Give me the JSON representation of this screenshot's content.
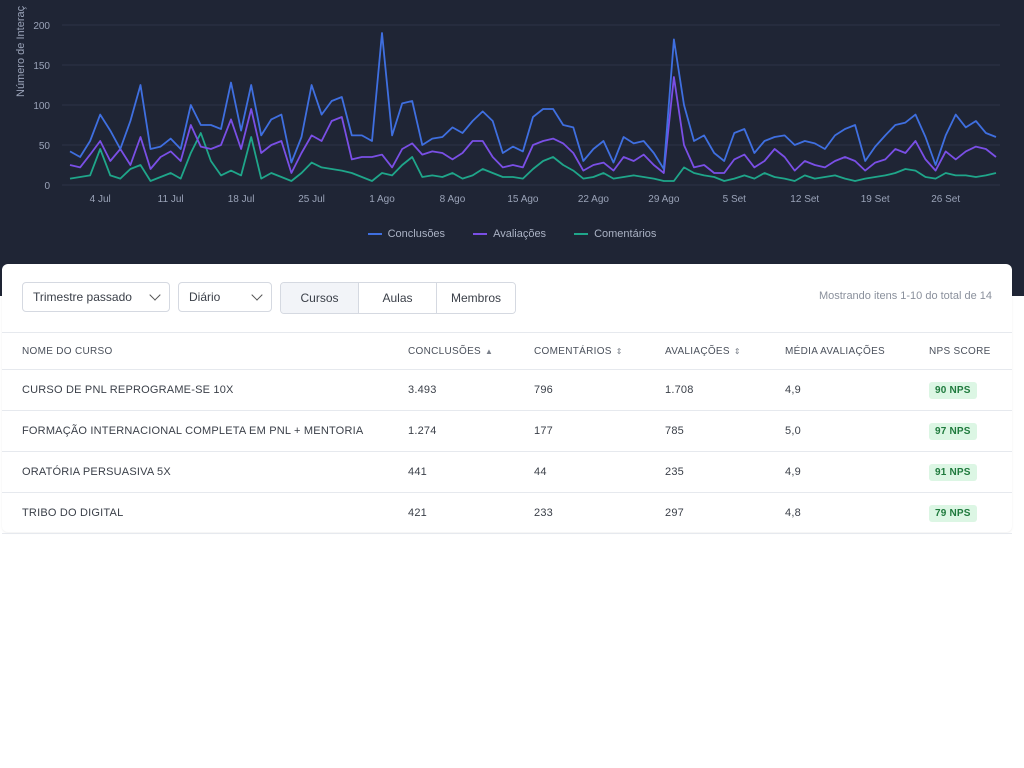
{
  "chart": {
    "ylabel": "Número de Interaç",
    "colors": {
      "conclusoes": "#3f6fe0",
      "avaliacoes": "#7a4fe6",
      "comentarios": "#1fa68a",
      "grid": "#2c3346"
    },
    "legend": [
      {
        "name": "Conclusões",
        "color": "#3f6fe0"
      },
      {
        "name": "Avaliações",
        "color": "#7a4fe6"
      },
      {
        "name": "Comentários",
        "color": "#1fa68a"
      }
    ]
  },
  "chart_data": {
    "type": "line",
    "title": "",
    "xlabel": "",
    "ylabel": "Número de Interaç",
    "ylim": [
      0,
      200
    ],
    "yticks": [
      0,
      50,
      100,
      150,
      200
    ],
    "x_start": "2024-07-01",
    "x_tick_labels": [
      "4 Jul",
      "11 Jul",
      "18 Jul",
      "25 Jul",
      "1 Ago",
      "8 Ago",
      "15 Ago",
      "22 Ago",
      "29 Ago",
      "5 Set",
      "12 Set",
      "19 Set",
      "26 Set"
    ],
    "grid": true,
    "legend_position": "bottom",
    "series": [
      {
        "name": "Conclusões",
        "values": [
          42,
          35,
          55,
          88,
          68,
          45,
          80,
          125,
          45,
          48,
          58,
          45,
          100,
          75,
          75,
          70,
          128,
          68,
          125,
          62,
          82,
          88,
          28,
          60,
          125,
          88,
          105,
          110,
          62,
          62,
          55,
          190,
          62,
          102,
          105,
          50,
          58,
          60,
          72,
          65,
          80,
          92,
          80,
          40,
          48,
          42,
          85,
          95,
          95,
          75,
          72,
          30,
          45,
          55,
          28,
          60,
          52,
          55,
          40,
          20,
          182,
          100,
          55,
          62,
          40,
          30,
          65,
          70,
          40,
          55,
          60,
          62,
          50,
          55,
          52,
          45,
          62,
          70,
          75,
          30,
          48,
          62,
          75,
          78,
          88,
          60,
          25,
          62,
          88,
          72,
          80,
          65,
          60
        ]
      },
      {
        "name": "Avaliações",
        "values": [
          25,
          22,
          38,
          55,
          30,
          45,
          25,
          60,
          20,
          35,
          42,
          30,
          75,
          48,
          45,
          50,
          82,
          45,
          95,
          40,
          50,
          55,
          15,
          40,
          62,
          55,
          80,
          85,
          32,
          35,
          35,
          38,
          22,
          45,
          52,
          38,
          42,
          40,
          32,
          40,
          55,
          55,
          35,
          22,
          25,
          22,
          50,
          55,
          58,
          52,
          40,
          18,
          25,
          28,
          18,
          35,
          30,
          38,
          25,
          15,
          135,
          50,
          22,
          25,
          15,
          15,
          32,
          38,
          22,
          30,
          45,
          35,
          18,
          30,
          25,
          22,
          30,
          35,
          30,
          18,
          28,
          32,
          45,
          40,
          55,
          32,
          18,
          42,
          32,
          42,
          48,
          45,
          35
        ]
      },
      {
        "name": "Comentários",
        "values": [
          8,
          10,
          12,
          45,
          12,
          8,
          20,
          25,
          5,
          10,
          15,
          8,
          40,
          65,
          30,
          12,
          18,
          12,
          60,
          8,
          15,
          10,
          5,
          15,
          28,
          22,
          20,
          18,
          15,
          10,
          5,
          15,
          12,
          25,
          35,
          10,
          12,
          10,
          15,
          8,
          12,
          20,
          15,
          10,
          10,
          8,
          20,
          30,
          35,
          25,
          18,
          8,
          10,
          15,
          8,
          10,
          12,
          10,
          8,
          5,
          5,
          22,
          15,
          12,
          10,
          5,
          8,
          12,
          8,
          15,
          10,
          8,
          5,
          12,
          8,
          10,
          12,
          8,
          5,
          8,
          10,
          12,
          15,
          20,
          18,
          10,
          8,
          15,
          12,
          12,
          10,
          12,
          15
        ]
      }
    ]
  },
  "filters": {
    "period": "Trimestre passado",
    "granularity": "Diário",
    "segments": [
      "Cursos",
      "Aulas",
      "Membros"
    ],
    "showing": "Mostrando itens 1-10 do total de 14"
  },
  "table": {
    "headers": [
      "NOME DO CURSO",
      "CONCLUSÕES",
      "COMENTÁRIOS",
      "AVALIAÇÕES",
      "MÉDIA AVALIAÇÕES",
      "NPS SCORE"
    ],
    "rows": [
      {
        "name": "CURSO DE PNL REPROGRAME-SE 10X",
        "conclusoes": "3.493",
        "comentarios": "796",
        "avaliacoes": "1.708",
        "media": "4,9",
        "nps": "90 NPS"
      },
      {
        "name": "FORMAÇÃO INTERNACIONAL COMPLETA EM PNL + MENTORIA",
        "conclusoes": "1.274",
        "comentarios": "177",
        "avaliacoes": "785",
        "media": "5,0",
        "nps": "97 NPS"
      },
      {
        "name": "ORATÓRIA PERSUASIVA 5X",
        "conclusoes": "441",
        "comentarios": "44",
        "avaliacoes": "235",
        "media": "4,9",
        "nps": "91 NPS"
      },
      {
        "name": "TRIBO DO DIGITAL",
        "conclusoes": "421",
        "comentarios": "233",
        "avaliacoes": "297",
        "media": "4,8",
        "nps": "79 NPS"
      }
    ]
  }
}
